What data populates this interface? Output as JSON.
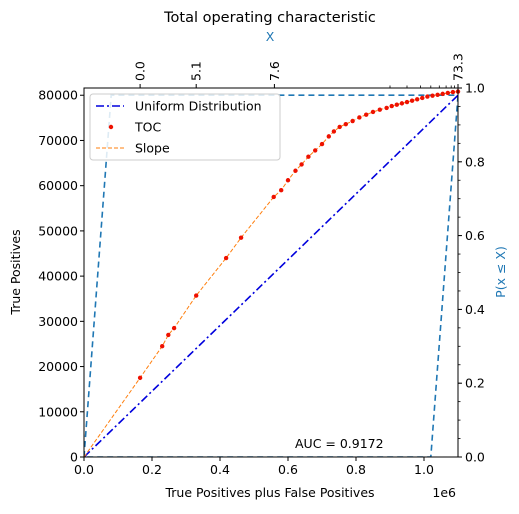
{
  "chart_data": {
    "type": "line",
    "title": "Total operating characteristic",
    "xlabel": "True Positives plus False Positives",
    "ylabel": "True Positives",
    "x_offset_label": "1e6",
    "xlim": [
      0,
      1100000
    ],
    "ylim": [
      0,
      81600
    ],
    "xticks": [
      0,
      200000,
      400000,
      600000,
      800000,
      1000000
    ],
    "xtick_labels": [
      "0.0",
      "0.2",
      "0.4",
      "0.6",
      "0.8",
      "1.0"
    ],
    "yticks": [
      0,
      10000,
      20000,
      30000,
      40000,
      50000,
      60000,
      70000,
      80000
    ],
    "ytick_labels": [
      "0",
      "10000",
      "20000",
      "30000",
      "40000",
      "50000",
      "60000",
      "70000",
      "80000"
    ],
    "top_axis": {
      "label": "X",
      "ticks": [
        {
          "label": "0.0",
          "value": 165000
        },
        {
          "label": "5.1",
          "value": 330000
        },
        {
          "label": "7.6",
          "value": 560000
        },
        {
          "label": "73.3",
          "value": 1100000
        }
      ]
    },
    "right_axis": {
      "label": "P(x ≤ X)",
      "lim": [
        0,
        1
      ],
      "ticks": [
        0,
        0.2,
        0.4,
        0.6,
        0.8,
        1.0
      ],
      "tick_labels": [
        "0.0",
        "0.2",
        "0.4",
        "0.6",
        "0.8",
        "1.0"
      ]
    },
    "grid": false,
    "legend_position": "top-left",
    "annotation": "AUC = 0.9172",
    "colors": {
      "uniform": "#0000dd",
      "toc": "#ee1100",
      "slope": "#ff7f0e",
      "bounds": "#1f77b4",
      "twin_axis": "#1f77b4"
    },
    "series": [
      {
        "name": "Uniform Distribution",
        "style": "dashdot",
        "x": [
          0,
          1100000
        ],
        "y": [
          0,
          80000
        ]
      },
      {
        "name": "TOC",
        "style": "markers",
        "x": [
          165000,
          230000,
          248000,
          265000,
          330000,
          418000,
          462000,
          558000,
          580000,
          600000,
          622000,
          640000,
          660000,
          680000,
          700000,
          720000,
          735000,
          752000,
          770000,
          790000,
          810000,
          830000,
          850000,
          870000,
          890000,
          905000,
          920000,
          935000,
          950000,
          965000,
          980000,
          995000,
          1010000,
          1025000,
          1040000,
          1055000,
          1070000,
          1085000,
          1100000
        ],
        "y": [
          17500,
          24500,
          27000,
          28500,
          35700,
          44000,
          48500,
          57500,
          59000,
          61200,
          63300,
          64700,
          66400,
          67800,
          69200,
          70900,
          72000,
          73000,
          73600,
          74300,
          75100,
          75700,
          76300,
          76800,
          77200,
          77600,
          77900,
          78200,
          78500,
          78800,
          79100,
          79400,
          79700,
          79900,
          80100,
          80300,
          80500,
          80700,
          80800
        ]
      },
      {
        "name": "Slope",
        "style": "dashed",
        "x": [
          0,
          165000,
          230000,
          248000,
          265000,
          330000,
          418000,
          462000,
          558000,
          580000,
          600000,
          622000,
          640000,
          660000,
          680000,
          700000,
          720000,
          735000,
          752000,
          770000,
          790000,
          810000,
          830000,
          850000,
          870000,
          890000,
          905000,
          920000,
          935000,
          950000,
          965000,
          980000,
          995000,
          1010000,
          1025000,
          1040000,
          1055000,
          1070000,
          1085000,
          1100000
        ],
        "y": [
          0,
          17500,
          24500,
          27000,
          28500,
          35700,
          44000,
          48500,
          57500,
          59000,
          61200,
          63300,
          64700,
          66400,
          67800,
          69200,
          70900,
          72000,
          73000,
          73600,
          74300,
          75100,
          75700,
          76300,
          76800,
          77200,
          77600,
          77900,
          78200,
          78500,
          78800,
          79100,
          79400,
          79700,
          79900,
          80100,
          80300,
          80500,
          80700,
          80800
        ]
      }
    ],
    "bounds_polygon": {
      "x": [
        0,
        80000,
        1100000,
        1100000,
        1020000,
        0
      ],
      "y": [
        0,
        80000,
        80000,
        80000,
        0,
        0
      ]
    }
  }
}
